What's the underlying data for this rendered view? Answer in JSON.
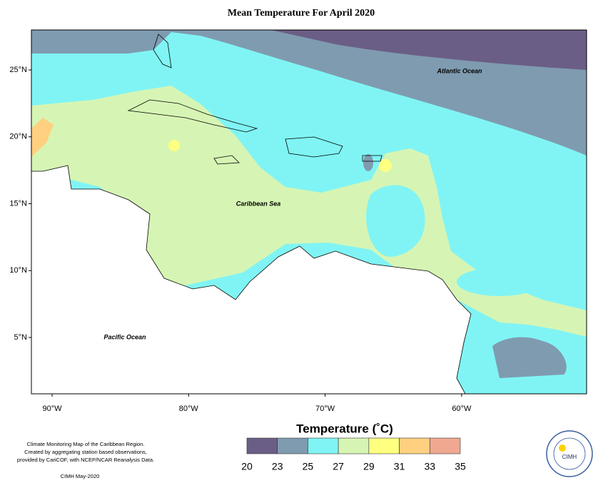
{
  "map": {
    "title": "Mean Temperature For April 2020",
    "lat_labels": [
      "25°N",
      "20°N",
      "15°N",
      "10°N",
      "5°N"
    ],
    "lon_labels": [
      "90°W",
      "80°W",
      "70°W",
      "60°W"
    ],
    "region_labels": {
      "atlantic": "Atlantic Ocean",
      "caribbean": "Caribbean Sea",
      "pacific": "Pacific Ocean"
    },
    "footer": {
      "lines": [
        "Climate Monitoring Map of the Caribbean Region.",
        "Created by aggregating station based observations,",
        "provided by CariCOF, with NCEP/NCAR Reanalysis Data."
      ],
      "credit": "CIMH May-2020"
    },
    "legend": {
      "title": "Temperature (˚C)",
      "ticks": [
        20,
        23,
        25,
        27,
        29,
        31,
        33,
        35
      ],
      "colors": [
        "#6b5e86",
        "#7f9bb0",
        "#80f4f4",
        "#d6f5b4",
        "#ffff80",
        "#ffd080",
        "#f0a890"
      ]
    },
    "logo": "CIMH"
  }
}
